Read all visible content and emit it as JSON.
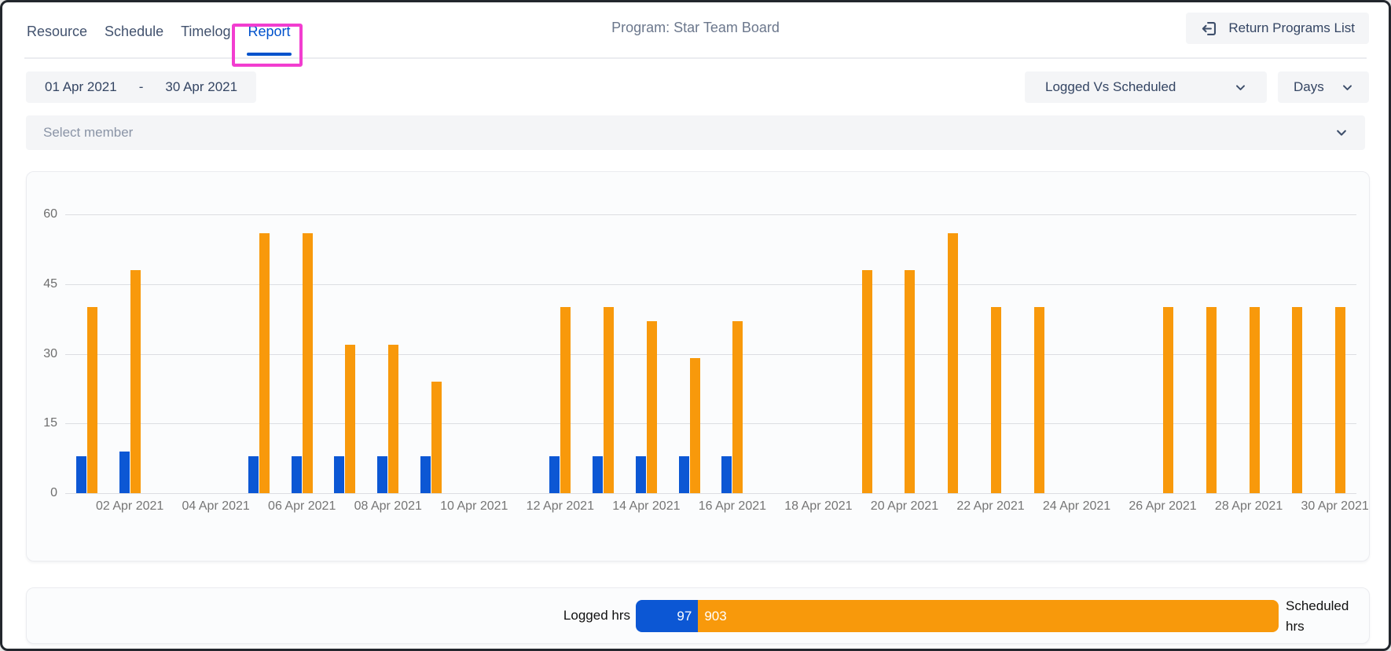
{
  "tabs": {
    "items": [
      {
        "label": "Resource",
        "active": false
      },
      {
        "label": "Schedule",
        "active": false
      },
      {
        "label": "Timelog",
        "active": false
      },
      {
        "label": "Report",
        "active": true
      }
    ]
  },
  "header": {
    "title": "Program: Star Team Board",
    "return_button_label": "Return Programs List"
  },
  "filters": {
    "date_from": "01 Apr 2021",
    "date_separator": "-",
    "date_to": "30 Apr 2021",
    "metric_dropdown_value": "Logged Vs Scheduled",
    "unit_dropdown_value": "Days",
    "member_placeholder": "Select member"
  },
  "icons": {
    "return": "return-arrow-icon",
    "dropdown": "chevron-down-icon"
  },
  "colors": {
    "logged": "#0C57D4",
    "scheduled": "#F8990B",
    "active_tab": "#0052CC",
    "annotation": "#F23DD0",
    "grid": "#DCDEE2"
  },
  "chart_data": {
    "type": "bar",
    "title": "",
    "xlabel": "",
    "ylabel": "",
    "ylim": [
      0,
      60
    ],
    "yticks": [
      0,
      15,
      30,
      45,
      60
    ],
    "grid": true,
    "legend_position": "none",
    "categories": [
      "01 Apr 2021",
      "02 Apr 2021",
      "03 Apr 2021",
      "04 Apr 2021",
      "05 Apr 2021",
      "06 Apr 2021",
      "07 Apr 2021",
      "08 Apr 2021",
      "09 Apr 2021",
      "10 Apr 2021",
      "11 Apr 2021",
      "12 Apr 2021",
      "13 Apr 2021",
      "14 Apr 2021",
      "15 Apr 2021",
      "16 Apr 2021",
      "17 Apr 2021",
      "18 Apr 2021",
      "19 Apr 2021",
      "20 Apr 2021",
      "21 Apr 2021",
      "22 Apr 2021",
      "23 Apr 2021",
      "24 Apr 2021",
      "25 Apr 2021",
      "26 Apr 2021",
      "27 Apr 2021",
      "28 Apr 2021",
      "29 Apr 2021",
      "30 Apr 2021"
    ],
    "xtick_every": 2,
    "series": [
      {
        "name": "Logged hrs",
        "color": "#0C57D4",
        "values": [
          8,
          9,
          0,
          0,
          8,
          8,
          8,
          8,
          8,
          0,
          0,
          8,
          8,
          8,
          8,
          8,
          0,
          0,
          0,
          0,
          0,
          0,
          0,
          0,
          0,
          0,
          0,
          0,
          0,
          0
        ]
      },
      {
        "name": "Scheduled hrs",
        "color": "#F8990B",
        "values": [
          40,
          48,
          0,
          0,
          56,
          56,
          32,
          32,
          24,
          0,
          0,
          40,
          40,
          37,
          29,
          37,
          0,
          0,
          48,
          48,
          56,
          40,
          40,
          0,
          0,
          40,
          40,
          40,
          40,
          40
        ]
      }
    ]
  },
  "summary": {
    "left_label": "Logged hrs",
    "right_label": "Scheduled hrs",
    "logged_total": 97,
    "scheduled_total": 903
  }
}
